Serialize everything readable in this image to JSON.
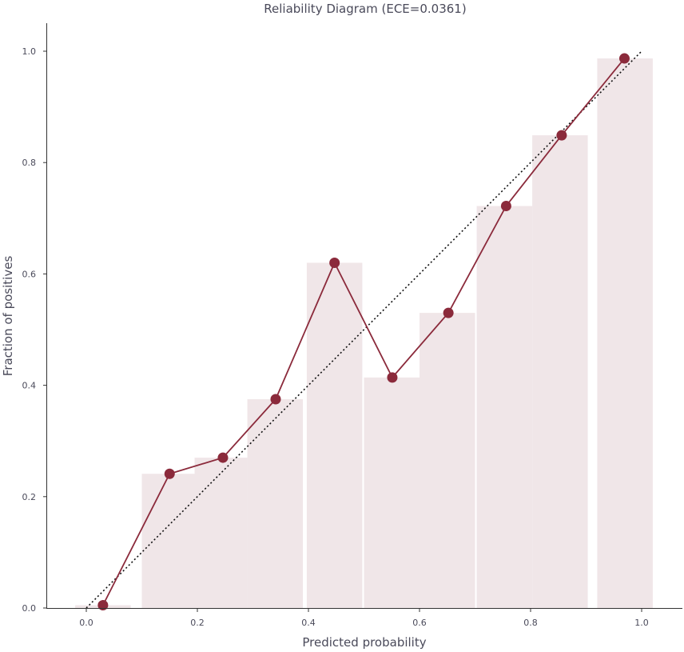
{
  "chart_data": {
    "type": "line",
    "title": "Reliability Diagram (ECE=0.0361)",
    "xlabel": "Predicted probability",
    "ylabel": "Fraction of positives",
    "xlim": [
      -0.07,
      1.07
    ],
    "ylim": [
      0,
      1.05
    ],
    "xticks": [
      "0.0",
      "0.2",
      "0.4",
      "0.6",
      "0.8",
      "1.0"
    ],
    "yticks": [
      "0.0",
      "0.2",
      "0.4",
      "0.6",
      "0.8",
      "1.0"
    ],
    "grid": false,
    "colors": {
      "line": "#8b2a3b",
      "bar": "#f0e6e8",
      "diagonal": "#111111"
    },
    "bars": [
      {
        "x_start": -0.02,
        "x_end": 0.08,
        "value": 0.005
      },
      {
        "x_start": 0.1,
        "x_end": 0.195,
        "value": 0.241
      },
      {
        "x_start": 0.195,
        "x_end": 0.29,
        "value": 0.27
      },
      {
        "x_start": 0.29,
        "x_end": 0.39,
        "value": 0.375
      },
      {
        "x_start": 0.397,
        "x_end": 0.497,
        "value": 0.62
      },
      {
        "x_start": 0.5,
        "x_end": 0.6,
        "value": 0.414
      },
      {
        "x_start": 0.6,
        "x_end": 0.7,
        "value": 0.53
      },
      {
        "x_start": 0.703,
        "x_end": 0.803,
        "value": 0.722
      },
      {
        "x_start": 0.803,
        "x_end": 0.903,
        "value": 0.849
      },
      {
        "x_start": 0.92,
        "x_end": 1.02,
        "value": 0.987
      }
    ],
    "series": [
      {
        "x": [
          0.03,
          0.15,
          0.246,
          0.341,
          0.447,
          0.551,
          0.652,
          0.756,
          0.856,
          0.969
        ],
        "y": [
          0.005,
          0.241,
          0.27,
          0.375,
          0.62,
          0.414,
          0.53,
          0.722,
          0.849,
          0.987
        ]
      }
    ],
    "diagonal": {
      "x": [
        0,
        1
      ],
      "y": [
        0,
        1
      ]
    }
  }
}
